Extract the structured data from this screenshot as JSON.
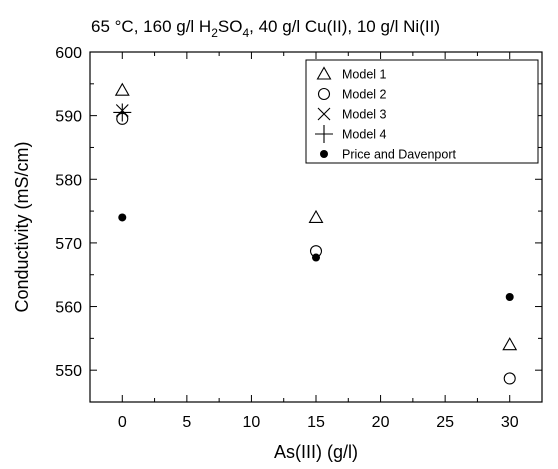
{
  "chart_data": {
    "type": "scatter",
    "title": {
      "main": "65 °C, 160 g/l H",
      "sub1": "2",
      "mid1": "SO",
      "sub2": "4",
      "tail": ", 40 g/l Cu(II), 10 g/l Ni(II)"
    },
    "xlabel": "As(III) (g/l)",
    "ylabel": "Conductivity (mS/cm)",
    "xlim": [
      -2.5,
      32.5
    ],
    "ylim": [
      545,
      600
    ],
    "xticks": [
      0,
      5,
      10,
      15,
      20,
      25,
      30
    ],
    "yticks": [
      550,
      560,
      570,
      580,
      590,
      600
    ],
    "legend_position": "top-right",
    "series": [
      {
        "name": "Model 1",
        "marker": "triangle-open",
        "x": [
          0,
          15,
          30
        ],
        "y": [
          594,
          574,
          554
        ]
      },
      {
        "name": "Model 2",
        "marker": "circle-open",
        "x": [
          0,
          15,
          30
        ],
        "y": [
          589.5,
          568.7,
          548.7
        ]
      },
      {
        "name": "Model 3",
        "marker": "x",
        "x": [
          0
        ],
        "y": [
          590.8
        ]
      },
      {
        "name": "Model 4",
        "marker": "plus",
        "x": [
          0
        ],
        "y": [
          590.5
        ]
      },
      {
        "name": "Price and Davenport",
        "marker": "circle-filled",
        "x": [
          0,
          15,
          30
        ],
        "y": [
          574,
          567.7,
          561.5
        ]
      }
    ]
  }
}
